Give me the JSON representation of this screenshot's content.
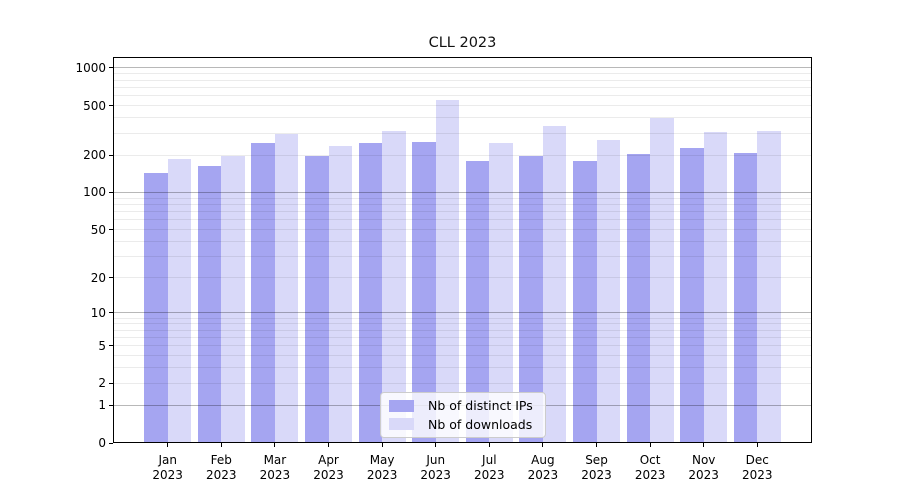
{
  "chart_data": {
    "type": "bar",
    "title": "CLL 2023",
    "xlabel": "",
    "ylabel": "",
    "categories": [
      "Jan",
      "Feb",
      "Mar",
      "Apr",
      "May",
      "Jun",
      "Jul",
      "Aug",
      "Sep",
      "Oct",
      "Nov",
      "Dec"
    ],
    "year": "2023",
    "series": [
      {
        "name": "Nb of distinct IPs",
        "color": "#a5a5f1",
        "values": [
          144,
          162,
          250,
          196,
          250,
          255,
          178,
          195,
          180,
          205,
          230,
          208
        ]
      },
      {
        "name": "Nb of downloads",
        "color": "#d9d9f9",
        "values": [
          185,
          198,
          295,
          235,
          315,
          555,
          250,
          345,
          265,
          400,
          305,
          310
        ]
      }
    ],
    "yscale": "log10(1+x)",
    "ylim": [
      0,
      1224
    ],
    "yticks": [
      0,
      1,
      2,
      5,
      10,
      20,
      50,
      100,
      200,
      500,
      1000
    ],
    "gridlines": {
      "minor": [
        2,
        3,
        4,
        5,
        6,
        7,
        8,
        9,
        20,
        30,
        40,
        50,
        60,
        70,
        80,
        90,
        200,
        300,
        400,
        500,
        600,
        700,
        800,
        900
      ],
      "major": [
        1,
        10,
        100,
        1000
      ]
    },
    "grid_on": true,
    "legend_position": "lower center"
  },
  "colors": {
    "grid_minor": "rgba(0,0,0,0.08)",
    "grid_major": "rgba(0,0,0,0.28)",
    "axis": "#000000",
    "legend_border": "#cccccc",
    "legend_background": "rgba(255,255,255,0.8)"
  }
}
